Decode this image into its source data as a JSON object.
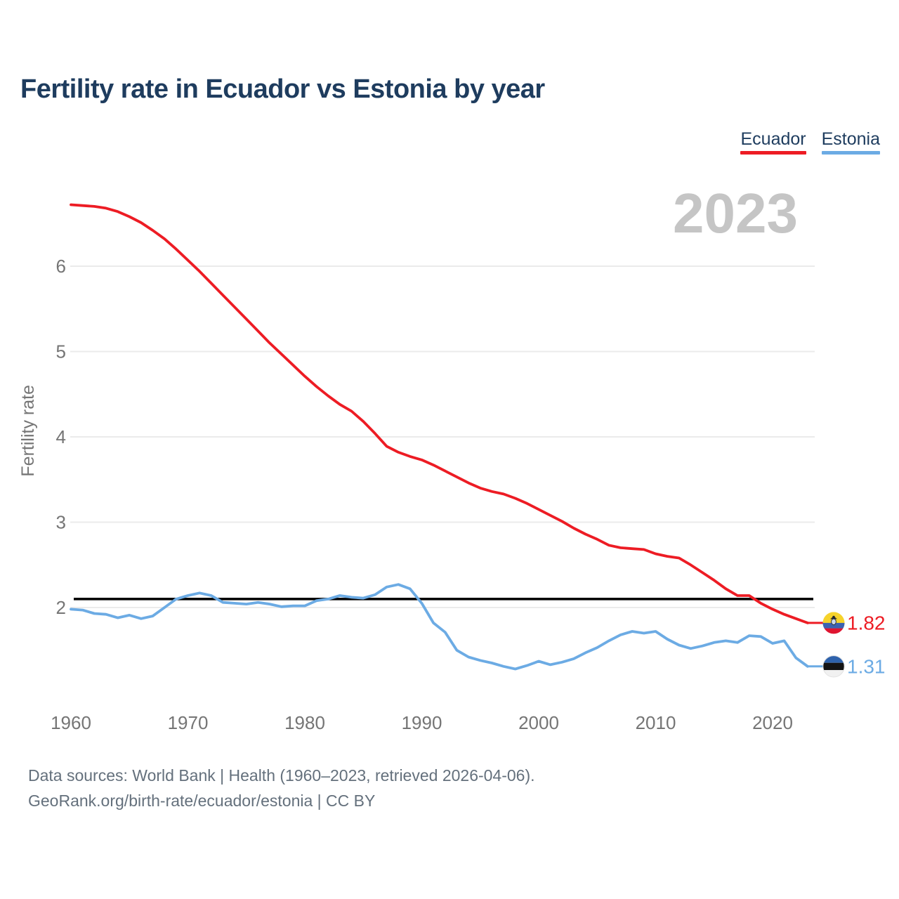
{
  "header": {
    "title": "Fertility rate in Ecuador vs Estonia by year"
  },
  "legend": {
    "items": [
      {
        "label": "Ecuador",
        "color": "#ed1c24"
      },
      {
        "label": "Estonia",
        "color": "#6cabe4"
      }
    ]
  },
  "chart_data": {
    "type": "line",
    "title": "Fertility rate in Ecuador vs Estonia by year",
    "watermark": "2023",
    "ylabel": "Fertility rate",
    "xlabel": "",
    "grid": true,
    "legend_position": "top-right",
    "xlim": [
      1960,
      2023
    ],
    "ylim": [
      1.1,
      6.9
    ],
    "xticks": [
      1960,
      1970,
      1980,
      1990,
      2000,
      2010,
      2020
    ],
    "yticks": [
      2,
      3,
      4,
      5,
      6
    ],
    "reference_line": {
      "value": 2.1,
      "color": "#000000"
    },
    "x": [
      1960,
      1961,
      1962,
      1963,
      1964,
      1965,
      1966,
      1967,
      1968,
      1969,
      1970,
      1971,
      1972,
      1973,
      1974,
      1975,
      1976,
      1977,
      1978,
      1979,
      1980,
      1981,
      1982,
      1983,
      1984,
      1985,
      1986,
      1987,
      1988,
      1989,
      1990,
      1991,
      1992,
      1993,
      1994,
      1995,
      1996,
      1997,
      1998,
      1999,
      2000,
      2001,
      2002,
      2003,
      2004,
      2005,
      2006,
      2007,
      2008,
      2009,
      2010,
      2011,
      2012,
      2013,
      2014,
      2015,
      2016,
      2017,
      2018,
      2019,
      2020,
      2021,
      2022,
      2023
    ],
    "series": [
      {
        "name": "Ecuador",
        "color": "#ed1c24",
        "end_label": "1.82",
        "flag": "ecuador-flag-icon",
        "values": [
          6.72,
          6.71,
          6.7,
          6.68,
          6.64,
          6.58,
          6.51,
          6.42,
          6.32,
          6.2,
          6.07,
          5.94,
          5.8,
          5.66,
          5.52,
          5.38,
          5.24,
          5.1,
          4.97,
          4.84,
          4.71,
          4.59,
          4.48,
          4.38,
          4.3,
          4.18,
          4.04,
          3.89,
          3.82,
          3.77,
          3.73,
          3.67,
          3.6,
          3.53,
          3.46,
          3.4,
          3.36,
          3.33,
          3.28,
          3.22,
          3.15,
          3.08,
          3.01,
          2.93,
          2.86,
          2.8,
          2.73,
          2.7,
          2.69,
          2.68,
          2.63,
          2.6,
          2.58,
          2.5,
          2.41,
          2.32,
          2.22,
          2.14,
          2.14,
          2.05,
          1.98,
          1.92,
          1.87,
          1.82
        ]
      },
      {
        "name": "Estonia",
        "color": "#6cabe4",
        "end_label": "1.31",
        "flag": "estonia-flag-icon",
        "values": [
          1.98,
          1.97,
          1.93,
          1.92,
          1.88,
          1.91,
          1.87,
          1.9,
          2.0,
          2.1,
          2.14,
          2.17,
          2.14,
          2.06,
          2.05,
          2.04,
          2.06,
          2.04,
          2.01,
          2.02,
          2.02,
          2.08,
          2.1,
          2.14,
          2.12,
          2.11,
          2.15,
          2.24,
          2.27,
          2.22,
          2.05,
          1.82,
          1.71,
          1.5,
          1.42,
          1.38,
          1.35,
          1.31,
          1.28,
          1.32,
          1.37,
          1.33,
          1.36,
          1.4,
          1.47,
          1.53,
          1.61,
          1.68,
          1.72,
          1.7,
          1.72,
          1.63,
          1.56,
          1.52,
          1.55,
          1.59,
          1.61,
          1.59,
          1.67,
          1.66,
          1.58,
          1.61,
          1.41,
          1.31
        ]
      }
    ]
  },
  "footer": {
    "line1": "Data sources: World Bank | Health (1960–2023, retrieved 2026-04-06).",
    "line2": "GeoRank.org/birth-rate/ecuador/estonia | CC BY"
  }
}
